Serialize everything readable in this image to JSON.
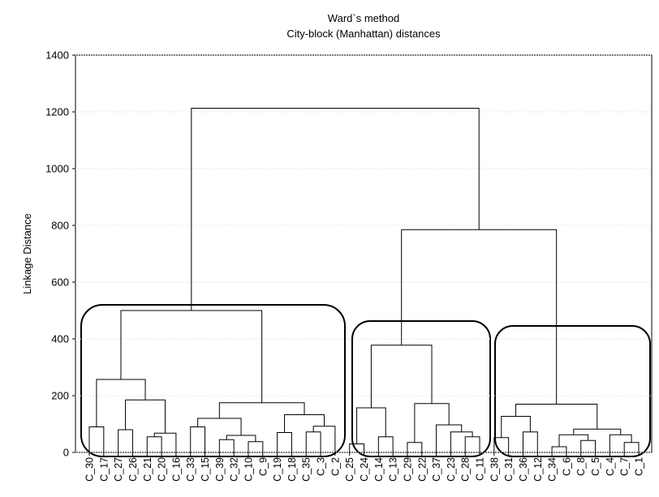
{
  "chart_data": {
    "type": "dendrogram",
    "title": "Ward`s method",
    "subtitle": "City-block (Manhattan) distances",
    "y_label": "Linkage Distance",
    "ylim": [
      0,
      1400
    ],
    "yticks": [
      0,
      200,
      400,
      600,
      800,
      1000,
      1200,
      1400
    ],
    "grid": true,
    "leaves": [
      "C_30",
      "C_17",
      "C_27",
      "C_26",
      "C_21",
      "C_20",
      "C_16",
      "C_33",
      "C_15",
      "C_39",
      "C_32",
      "C_10",
      "C_9",
      "C_19",
      "C_18",
      "C_35",
      "C_3",
      "C_2",
      "C_25",
      "C_24",
      "C_14",
      "C_13",
      "C_29",
      "C_22",
      "C_37",
      "C_23",
      "C_28",
      "C_11",
      "C_38",
      "C_31",
      "C_36",
      "C_12",
      "C_34",
      "C_6",
      "C_8",
      "C_5",
      "C_4",
      "C_7",
      "C_1"
    ],
    "merges": [
      {
        "left": 0,
        "right": 1,
        "height": 90
      },
      {
        "left": 2,
        "right": 3,
        "height": 80
      },
      {
        "left": 4,
        "right": 5,
        "height": 55
      },
      {
        "left": 41,
        "right": 6,
        "height": 68
      },
      {
        "left": 40,
        "right": 42,
        "height": 185
      },
      {
        "left": 39,
        "right": 43,
        "height": 257
      },
      {
        "left": 7,
        "right": 8,
        "height": 90
      },
      {
        "left": 9,
        "right": 10,
        "height": 45
      },
      {
        "left": 11,
        "right": 12,
        "height": 38
      },
      {
        "left": 46,
        "right": 47,
        "height": 60
      },
      {
        "left": 45,
        "right": 48,
        "height": 120
      },
      {
        "left": 13,
        "right": 14,
        "height": 70
      },
      {
        "left": 15,
        "right": 16,
        "height": 72
      },
      {
        "left": 51,
        "right": 17,
        "height": 92
      },
      {
        "left": 50,
        "right": 52,
        "height": 133
      },
      {
        "left": 49,
        "right": 53,
        "height": 175
      },
      {
        "left": 44,
        "right": 54,
        "height": 500
      },
      {
        "left": 18,
        "right": 19,
        "height": 30
      },
      {
        "left": 20,
        "right": 21,
        "height": 55
      },
      {
        "left": 56,
        "right": 57,
        "height": 157
      },
      {
        "left": 22,
        "right": 23,
        "height": 35
      },
      {
        "left": 26,
        "right": 27,
        "height": 55
      },
      {
        "left": 25,
        "right": 60,
        "height": 72
      },
      {
        "left": 24,
        "right": 61,
        "height": 97
      },
      {
        "left": 59,
        "right": 62,
        "height": 172
      },
      {
        "left": 58,
        "right": 63,
        "height": 378
      },
      {
        "left": 28,
        "right": 29,
        "height": 52
      },
      {
        "left": 30,
        "right": 31,
        "height": 72
      },
      {
        "left": 65,
        "right": 66,
        "height": 127
      },
      {
        "left": 32,
        "right": 33,
        "height": 20
      },
      {
        "left": 34,
        "right": 35,
        "height": 42
      },
      {
        "left": 68,
        "right": 69,
        "height": 62
      },
      {
        "left": 37,
        "right": 38,
        "height": 35
      },
      {
        "left": 36,
        "right": 71,
        "height": 62
      },
      {
        "left": 70,
        "right": 72,
        "height": 82
      },
      {
        "left": 67,
        "right": 73,
        "height": 170
      },
      {
        "left": 64,
        "right": 74,
        "height": 785
      },
      {
        "left": 55,
        "right": 75,
        "height": 1213
      }
    ]
  }
}
